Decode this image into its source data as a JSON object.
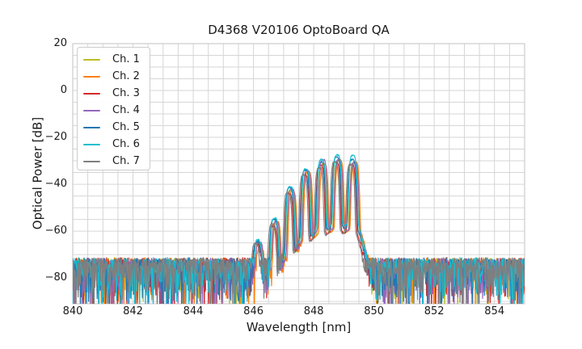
{
  "figure": {
    "background": "#ffffff",
    "text_color": "#1a1a1a"
  },
  "chart_data": {
    "type": "line",
    "title": "D4368 V20106 OptoBoard QA",
    "xlabel": "Wavelength [nm]",
    "ylabel": "Optical Power [dB]",
    "xlim": [
      840,
      855
    ],
    "ylim": [
      -91,
      20
    ],
    "x_ticks": [
      840,
      842,
      844,
      846,
      848,
      850,
      852,
      854
    ],
    "x_tick_labels": [
      "840",
      "842",
      "844",
      "846",
      "848",
      "850",
      "852",
      "854"
    ],
    "y_ticks": [
      20,
      0,
      -20,
      -40,
      -60,
      -80
    ],
    "y_tick_labels": [
      "20",
      "0",
      "−20",
      "−40",
      "−60",
      "−80"
    ],
    "grid": {
      "on": true,
      "x_minor_step_nm": 0.5,
      "y_minor_step_db": 5,
      "color": "#d6d6d6"
    },
    "frame_color": "#cccccc",
    "legend": {
      "position": "upper-left"
    },
    "noise_floor": {
      "top_dB": -71.5,
      "mean_dB": -77.5,
      "exp_scale_dB": 6,
      "bottom_clip_dB": -110,
      "step_nm": 0.015
    },
    "mode_shape": {
      "main_width_nm": 0.105,
      "main_exponent": 4,
      "pedestal_amp": 0.002,
      "pedestal_width_nm": 0.22
    },
    "series": [
      {
        "name": "Ch. 1",
        "color": "#bcbd22",
        "seed": 101,
        "mode_x": [
          846.18,
          846.73,
          847.25,
          847.77,
          848.29,
          848.81,
          849.33
        ],
        "mode_dB": [
          -66,
          -57,
          -42.5,
          -35,
          -31.5,
          -30,
          -31
        ]
      },
      {
        "name": "Ch. 2",
        "color": "#ff7f0e",
        "seed": 202,
        "mode_x": [
          846.23,
          846.78,
          847.3,
          847.82,
          848.34,
          848.86,
          849.38
        ],
        "mode_dB": [
          -67,
          -56,
          -43,
          -34.5,
          -31.5,
          -29.5,
          -30.5
        ]
      },
      {
        "name": "Ch. 3",
        "color": "#d62728",
        "seed": 303,
        "mode_x": [
          846.11,
          846.66,
          847.18,
          847.7,
          848.22,
          848.74,
          849.26
        ],
        "mode_dB": [
          -66,
          -58,
          -44,
          -36,
          -32,
          -30.5,
          -31.5
        ]
      },
      {
        "name": "Ch. 4",
        "color": "#9467bd",
        "seed": 404,
        "mode_x": [
          846.2,
          846.75,
          847.27,
          847.79,
          848.31,
          848.83,
          849.35
        ],
        "mode_dB": [
          -65,
          -56,
          -42,
          -34,
          -29.5,
          -29.5,
          -30.5
        ]
      },
      {
        "name": "Ch. 5",
        "color": "#1f77b4",
        "seed": 505,
        "mode_x": [
          846.13,
          846.68,
          847.2,
          847.72,
          848.24,
          848.76,
          849.28
        ],
        "mode_dB": [
          -65,
          -55,
          -41.5,
          -34,
          -30.5,
          -28.5,
          -29.5
        ]
      },
      {
        "name": "Ch. 6",
        "color": "#17becf",
        "seed": 606,
        "mode_x": [
          846.15,
          846.7,
          847.22,
          847.74,
          848.26,
          848.78,
          849.3
        ],
        "mode_dB": [
          -64,
          -54.5,
          -41,
          -33.5,
          -29.5,
          -27.5,
          -27.7
        ]
      },
      {
        "name": "Ch. 7",
        "color": "#7f7f7f",
        "seed": 707,
        "mode_x": [
          846.07,
          846.62,
          847.14,
          847.66,
          848.18,
          848.7,
          849.22
        ],
        "mode_dB": [
          -66,
          -57,
          -43.5,
          -36,
          -33,
          -30.5,
          -31.5
        ]
      }
    ]
  }
}
